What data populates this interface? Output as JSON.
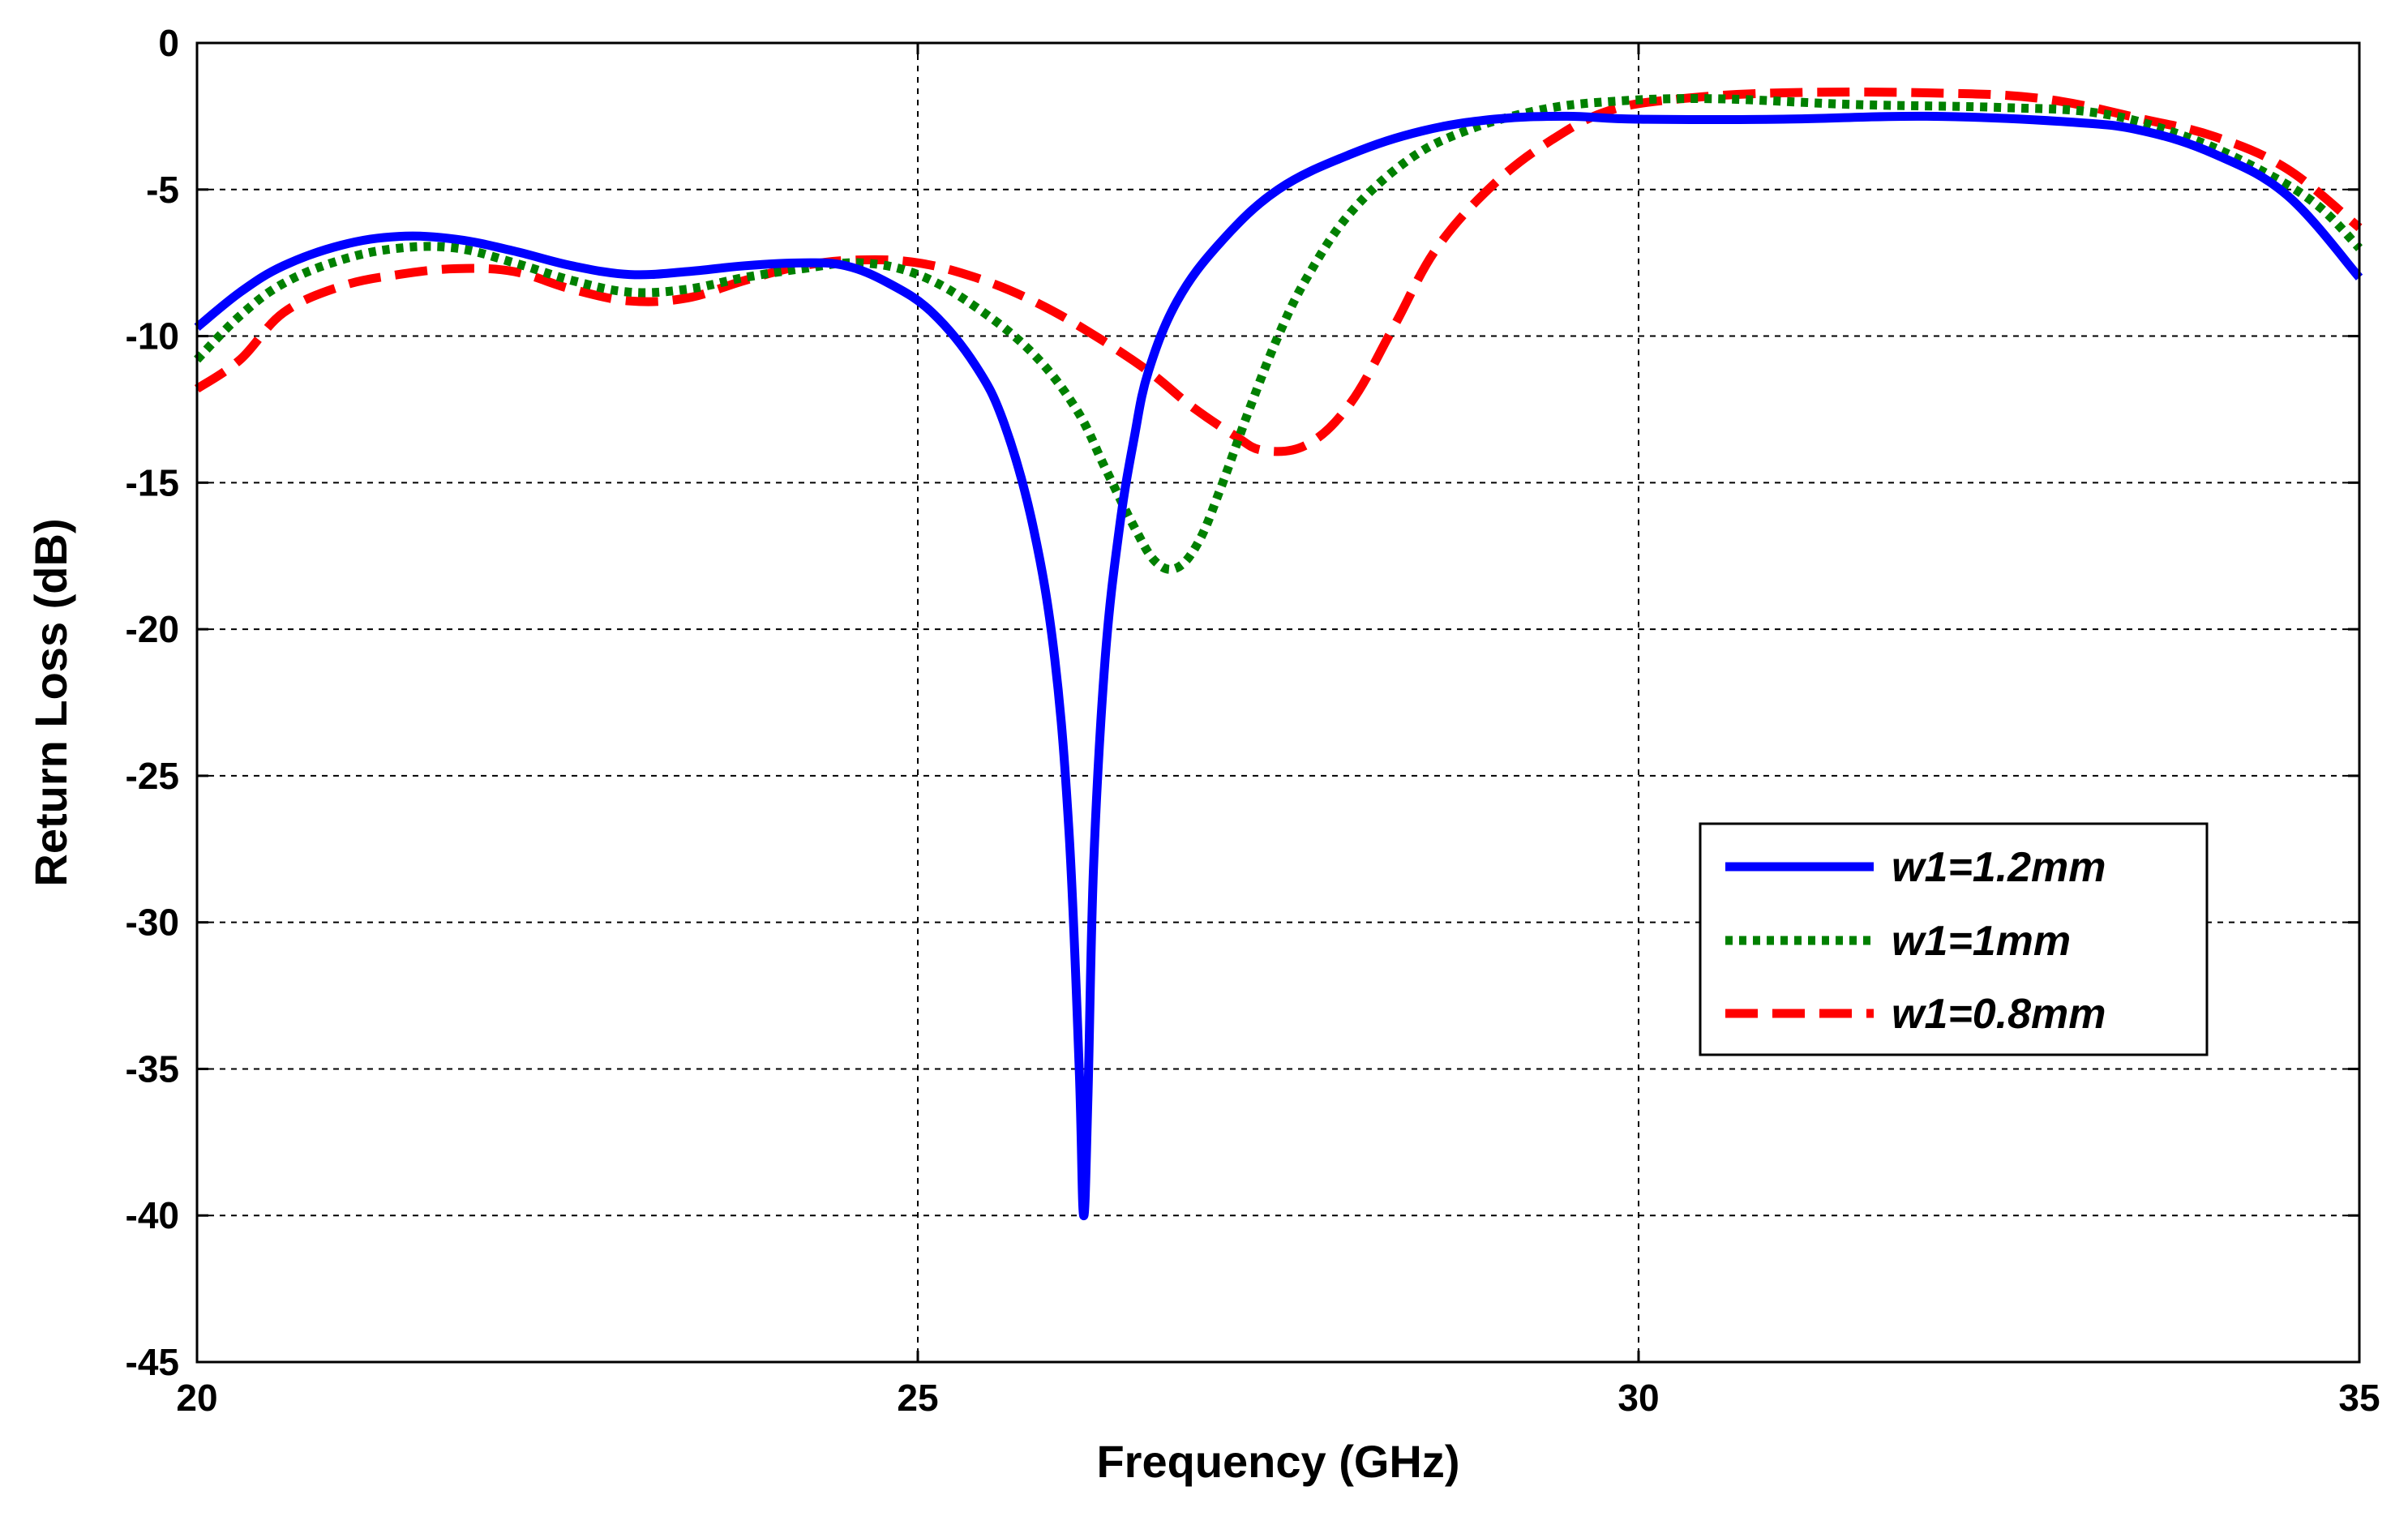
{
  "chart_data": {
    "type": "line",
    "title": "",
    "xlabel": "Frequency (GHz)",
    "ylabel": "Return Loss (dB)",
    "xlim": [
      20,
      35
    ],
    "ylim": [
      -45,
      0
    ],
    "xticks": [
      20,
      25,
      30,
      35
    ],
    "yticks": [
      0,
      -5,
      -10,
      -15,
      -20,
      -25,
      -30,
      -35,
      -40,
      -45
    ],
    "xtick_labels": [
      "20",
      "25",
      "30",
      "35"
    ],
    "ytick_labels": [
      "0",
      "-5",
      "-10",
      "-15",
      "-20",
      "-25",
      "-30",
      "-35",
      "-40",
      "-45"
    ],
    "grid": true,
    "legend_position": "center-right",
    "series": [
      {
        "name": "w1=1.2mm",
        "color": "#0000ff",
        "style": "solid",
        "points": [
          [
            20,
            -9.7
          ],
          [
            20.3,
            -8.5
          ],
          [
            20.6,
            -7.6
          ],
          [
            21,
            -6.9
          ],
          [
            21.4,
            -6.6
          ],
          [
            21.8,
            -6.7
          ],
          [
            22.2,
            -7.1
          ],
          [
            22.6,
            -7.6
          ],
          [
            23,
            -7.9
          ],
          [
            23.4,
            -7.8
          ],
          [
            23.8,
            -7.6
          ],
          [
            24.2,
            -7.5
          ],
          [
            24.5,
            -7.6
          ],
          [
            24.8,
            -8.2
          ],
          [
            25.1,
            -9.2
          ],
          [
            25.4,
            -11
          ],
          [
            25.6,
            -13
          ],
          [
            25.8,
            -16.5
          ],
          [
            25.95,
            -21
          ],
          [
            26.05,
            -27
          ],
          [
            26.12,
            -35
          ],
          [
            26.15,
            -40
          ],
          [
            26.18,
            -36
          ],
          [
            26.22,
            -28
          ],
          [
            26.3,
            -21
          ],
          [
            26.4,
            -16.5
          ],
          [
            26.5,
            -13.5
          ],
          [
            26.6,
            -11.2
          ],
          [
            26.8,
            -8.8
          ],
          [
            27.1,
            -6.8
          ],
          [
            27.5,
            -5
          ],
          [
            28,
            -3.8
          ],
          [
            28.5,
            -3
          ],
          [
            29,
            -2.6
          ],
          [
            29.5,
            -2.5
          ],
          [
            30,
            -2.6
          ],
          [
            31,
            -2.6
          ],
          [
            32,
            -2.5
          ],
          [
            33,
            -2.7
          ],
          [
            33.5,
            -3
          ],
          [
            34,
            -3.8
          ],
          [
            34.5,
            -5.2
          ],
          [
            35,
            -8
          ]
        ]
      },
      {
        "name": "w1=1mm",
        "color": "#008000",
        "style": "dotted",
        "points": [
          [
            20,
            -10.8
          ],
          [
            20.3,
            -9.3
          ],
          [
            20.6,
            -8.2
          ],
          [
            21,
            -7.4
          ],
          [
            21.4,
            -7.0
          ],
          [
            21.8,
            -7.0
          ],
          [
            22.2,
            -7.5
          ],
          [
            22.6,
            -8.1
          ],
          [
            23,
            -8.5
          ],
          [
            23.4,
            -8.4
          ],
          [
            23.8,
            -8.0
          ],
          [
            24.2,
            -7.7
          ],
          [
            24.6,
            -7.5
          ],
          [
            25,
            -7.9
          ],
          [
            25.4,
            -9
          ],
          [
            25.8,
            -10.6
          ],
          [
            26.1,
            -12.5
          ],
          [
            26.3,
            -14.5
          ],
          [
            26.5,
            -16.5
          ],
          [
            26.65,
            -17.7
          ],
          [
            26.8,
            -17.9
          ],
          [
            26.95,
            -17
          ],
          [
            27.1,
            -15.2
          ],
          [
            27.3,
            -12.5
          ],
          [
            27.5,
            -10
          ],
          [
            27.7,
            -8
          ],
          [
            28,
            -5.8
          ],
          [
            28.4,
            -4
          ],
          [
            28.8,
            -3
          ],
          [
            29.3,
            -2.3
          ],
          [
            29.8,
            -2
          ],
          [
            30.5,
            -1.9
          ],
          [
            31.5,
            -2.1
          ],
          [
            32.5,
            -2.2
          ],
          [
            33.2,
            -2.4
          ],
          [
            33.8,
            -3.2
          ],
          [
            34.3,
            -4.3
          ],
          [
            34.7,
            -5.5
          ],
          [
            35,
            -7
          ]
        ]
      },
      {
        "name": "w1=0.8mm",
        "color": "#ff0000",
        "style": "dashed",
        "points": [
          [
            20,
            -11.8
          ],
          [
            20.3,
            -10.8
          ],
          [
            20.6,
            -9.2
          ],
          [
            21,
            -8.3
          ],
          [
            21.4,
            -7.9
          ],
          [
            21.8,
            -7.7
          ],
          [
            22.2,
            -7.8
          ],
          [
            22.6,
            -8.4
          ],
          [
            23,
            -8.8
          ],
          [
            23.4,
            -8.7
          ],
          [
            23.8,
            -8.1
          ],
          [
            24.2,
            -7.6
          ],
          [
            24.6,
            -7.4
          ],
          [
            25,
            -7.5
          ],
          [
            25.4,
            -8
          ],
          [
            25.8,
            -8.8
          ],
          [
            26.2,
            -9.9
          ],
          [
            26.6,
            -11.2
          ],
          [
            26.9,
            -12.4
          ],
          [
            27.2,
            -13.4
          ],
          [
            27.4,
            -13.9
          ],
          [
            27.7,
            -13.7
          ],
          [
            28,
            -12.3
          ],
          [
            28.3,
            -9.7
          ],
          [
            28.6,
            -7
          ],
          [
            29,
            -4.8
          ],
          [
            29.4,
            -3.3
          ],
          [
            29.8,
            -2.3
          ],
          [
            30.3,
            -1.9
          ],
          [
            31,
            -1.7
          ],
          [
            32,
            -1.7
          ],
          [
            32.8,
            -1.9
          ],
          [
            33.5,
            -2.6
          ],
          [
            34,
            -3.2
          ],
          [
            34.5,
            -4.3
          ],
          [
            35,
            -6.3
          ]
        ]
      }
    ]
  }
}
